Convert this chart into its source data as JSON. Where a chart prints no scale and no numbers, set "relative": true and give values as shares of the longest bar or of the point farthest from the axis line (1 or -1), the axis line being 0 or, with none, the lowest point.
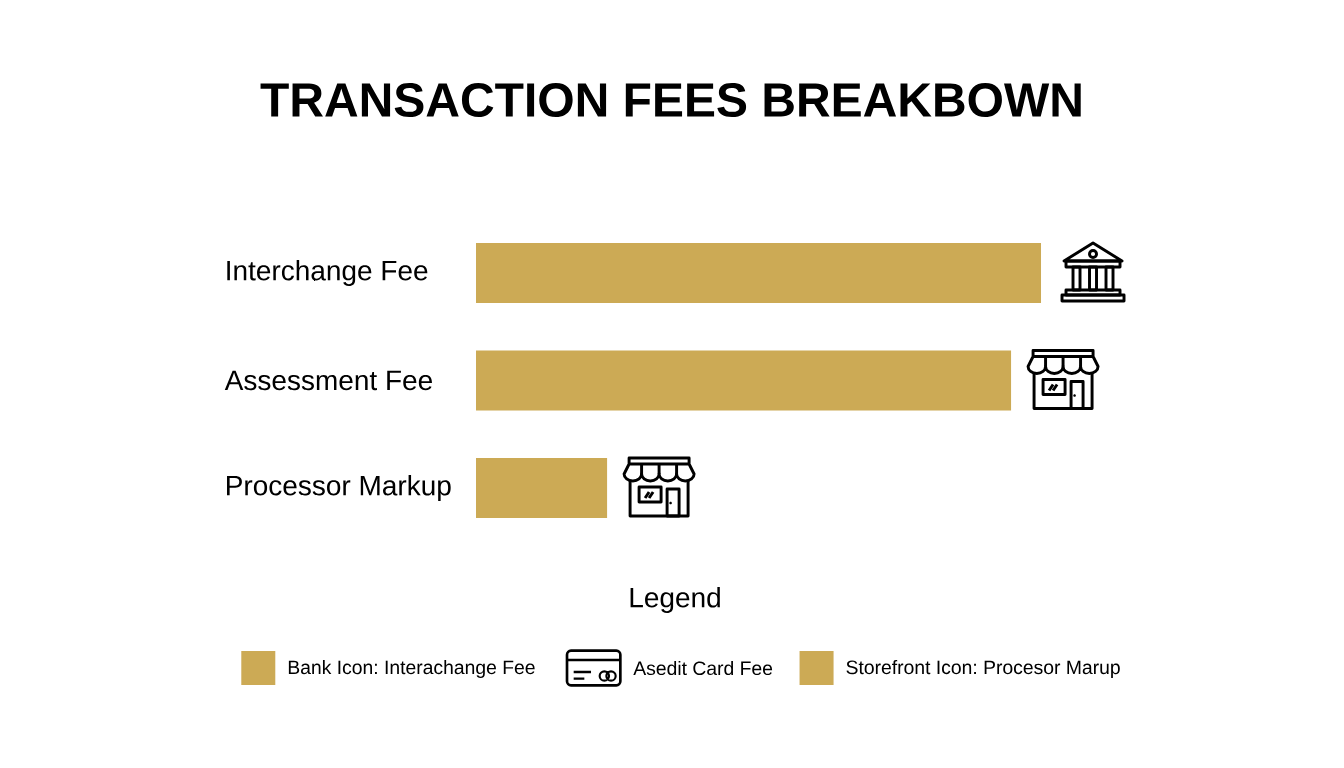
{
  "chart_data": {
    "type": "bar",
    "orientation": "horizontal",
    "relative": true,
    "title": "TRANSACTION FEES BREAKBOWN",
    "categories": [
      "Interchange Fee",
      "Assessment Fee",
      "Processor Markup"
    ],
    "series": [
      {
        "name": "Bank Icon: Interachange Fee",
        "color": "#ccaa55",
        "values": [
          1,
          null,
          null
        ]
      },
      {
        "color": "#ccaa55",
        "values": [
          null,
          0.947,
          null
        ]
      },
      {
        "name": "Storefront Icon: Procesor Marup",
        "color": "#ccaa55",
        "values": [
          null,
          null,
          0.232
        ]
      }
    ],
    "annotations": [
      "Asedit Card Fee"
    ],
    "legend": "bottom",
    "legend_title": "Legend"
  }
}
